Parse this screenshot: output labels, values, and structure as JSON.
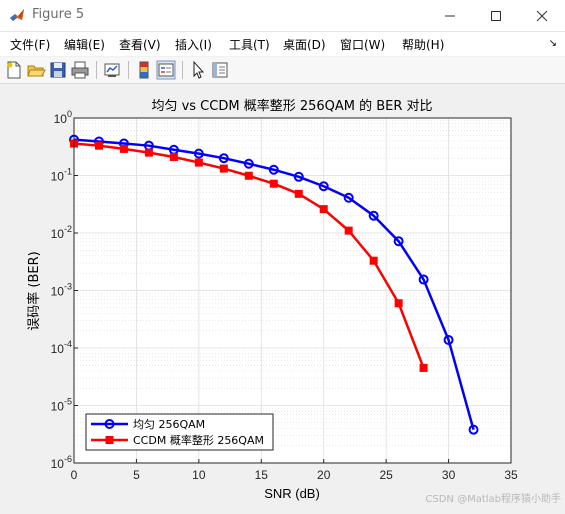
{
  "window": {
    "title": "Figure 5",
    "app_icon": "matlab-icon",
    "controls": [
      "minimize-icon",
      "maximize-icon",
      "close-icon"
    ]
  },
  "menu": {
    "items": [
      "文件(F)",
      "编辑(E)",
      "查看(V)",
      "插入(I)",
      "工具(T)",
      "桌面(D)",
      "窗口(W)",
      "帮助(H)"
    ],
    "overflow_arrow": "↘"
  },
  "toolbar": {
    "buttons": [
      "new-figure-icon",
      "open-file-icon",
      "save-icon",
      "print-icon",
      "link-plot-icon",
      "colorbar-icon",
      "legend-icon",
      "pointer-icon",
      "property-editor-icon"
    ]
  },
  "chart_data": {
    "type": "line",
    "title": "均匀 vs CCDM 概率整形 256QAM 的 BER 对比",
    "xlabel": "SNR (dB)",
    "ylabel": "误码率 (BER)",
    "xlim": [
      0,
      35
    ],
    "ylim": [
      1e-06,
      1
    ],
    "yscale": "log",
    "grid": true,
    "minor_grid": true,
    "x_ticks": [
      "0",
      "5",
      "10",
      "15",
      "20",
      "25",
      "30",
      "35"
    ],
    "y_ticks": [
      {
        "base": "10",
        "exp": "0"
      },
      {
        "base": "10",
        "exp": "-1"
      },
      {
        "base": "10",
        "exp": "-2"
      },
      {
        "base": "10",
        "exp": "-3"
      },
      {
        "base": "10",
        "exp": "-4"
      },
      {
        "base": "10",
        "exp": "-5"
      },
      {
        "base": "10",
        "exp": "-6"
      }
    ],
    "legend_position": "bottom-left",
    "series": [
      {
        "name": "均匀 256QAM",
        "color": "#0000ff",
        "marker": "circle",
        "x": [
          0,
          2,
          4,
          6,
          8,
          10,
          12,
          14,
          16,
          18,
          20,
          22,
          24,
          26,
          28,
          30,
          32
        ],
        "y": [
          0.42,
          0.39,
          0.36,
          0.33,
          0.28,
          0.24,
          0.2,
          0.16,
          0.126,
          0.095,
          0.065,
          0.041,
          0.02,
          0.0072,
          0.00155,
          0.000138,
          3.8e-06
        ]
      },
      {
        "name": "CCDM 概率整形 256QAM",
        "color": "#ff0000",
        "marker": "square",
        "x": [
          0,
          2,
          4,
          6,
          8,
          10,
          12,
          14,
          16,
          18,
          20,
          22,
          24,
          26,
          28
        ],
        "y": [
          0.36,
          0.33,
          0.29,
          0.25,
          0.21,
          0.168,
          0.132,
          0.099,
          0.072,
          0.048,
          0.026,
          0.011,
          0.0033,
          0.0006,
          4.5e-05
        ]
      }
    ]
  },
  "watermark": "CSDN @Matlab程序猿小助手"
}
